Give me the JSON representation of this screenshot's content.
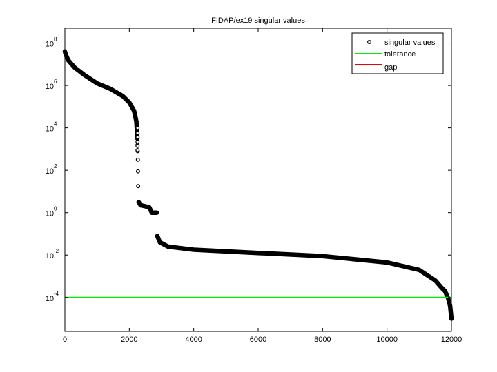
{
  "chart_data": {
    "type": "scatter",
    "title": "FIDAP/ex19 singular values",
    "xlabel": "",
    "ylabel": "",
    "xlim": [
      0,
      12000
    ],
    "ylim_log10": [
      -5.6,
      8.7
    ],
    "yscale": "log",
    "grid": false,
    "legend_position": "top-right",
    "x_ticks": [
      0,
      2000,
      4000,
      6000,
      8000,
      10000,
      12000
    ],
    "x_tick_labels": [
      "0",
      "2000",
      "4000",
      "6000",
      "8000",
      "10000",
      "12000"
    ],
    "y_ticks_log10": [
      8,
      6,
      4,
      2,
      0,
      -2,
      -4
    ],
    "y_tick_labels": [
      {
        "base": "10",
        "exp": "8"
      },
      {
        "base": "10",
        "exp": "6"
      },
      {
        "base": "10",
        "exp": "4"
      },
      {
        "base": "10",
        "exp": "2"
      },
      {
        "base": "10",
        "exp": "0"
      },
      {
        "base": "10",
        "exp": "-2"
      },
      {
        "base": "10",
        "exp": "-4"
      }
    ],
    "series": [
      {
        "name": "singular values",
        "style": "marker-circle",
        "color": "#000000",
        "points_log10": [
          [
            0,
            7.6
          ],
          [
            30,
            7.45
          ],
          [
            100,
            7.2
          ],
          [
            300,
            6.85
          ],
          [
            600,
            6.5
          ],
          [
            1000,
            6.1
          ],
          [
            1400,
            5.85
          ],
          [
            1800,
            5.5
          ],
          [
            2000,
            5.2
          ],
          [
            2150,
            4.8
          ],
          [
            2220,
            4.3
          ],
          [
            2240,
            3.8
          ],
          [
            2250,
            3.5
          ],
          [
            2255,
            3.2
          ],
          [
            2260,
            2.9
          ],
          [
            2265,
            2.5
          ],
          [
            2270,
            1.95
          ],
          [
            2275,
            1.25
          ],
          [
            2290,
            0.5
          ],
          [
            2350,
            0.35
          ],
          [
            2500,
            0.3
          ],
          [
            2620,
            0.25
          ],
          [
            2700,
            0.0
          ],
          [
            2850,
            0.0
          ],
          [
            2870,
            -1.1
          ],
          [
            2950,
            -1.4
          ],
          [
            3200,
            -1.6
          ],
          [
            4000,
            -1.75
          ],
          [
            6000,
            -1.9
          ],
          [
            8000,
            -2.05
          ],
          [
            10000,
            -2.35
          ],
          [
            11000,
            -2.7
          ],
          [
            11500,
            -3.2
          ],
          [
            11700,
            -3.55
          ],
          [
            11800,
            -3.7
          ],
          [
            11900,
            -4.05
          ],
          [
            11960,
            -4.4
          ],
          [
            12000,
            -5.0
          ]
        ]
      },
      {
        "name": "tolerance",
        "style": "line",
        "color": "#00ee00",
        "value_log10": -4
      },
      {
        "name": "gap",
        "style": "line",
        "color": "#ee0000"
      }
    ]
  },
  "legend": {
    "items": [
      {
        "label": "singular values",
        "kind": "marker"
      },
      {
        "label": "tolerance",
        "kind": "line",
        "color": "#00ee00"
      },
      {
        "label": "gap",
        "kind": "line",
        "color": "#ee0000"
      }
    ]
  }
}
